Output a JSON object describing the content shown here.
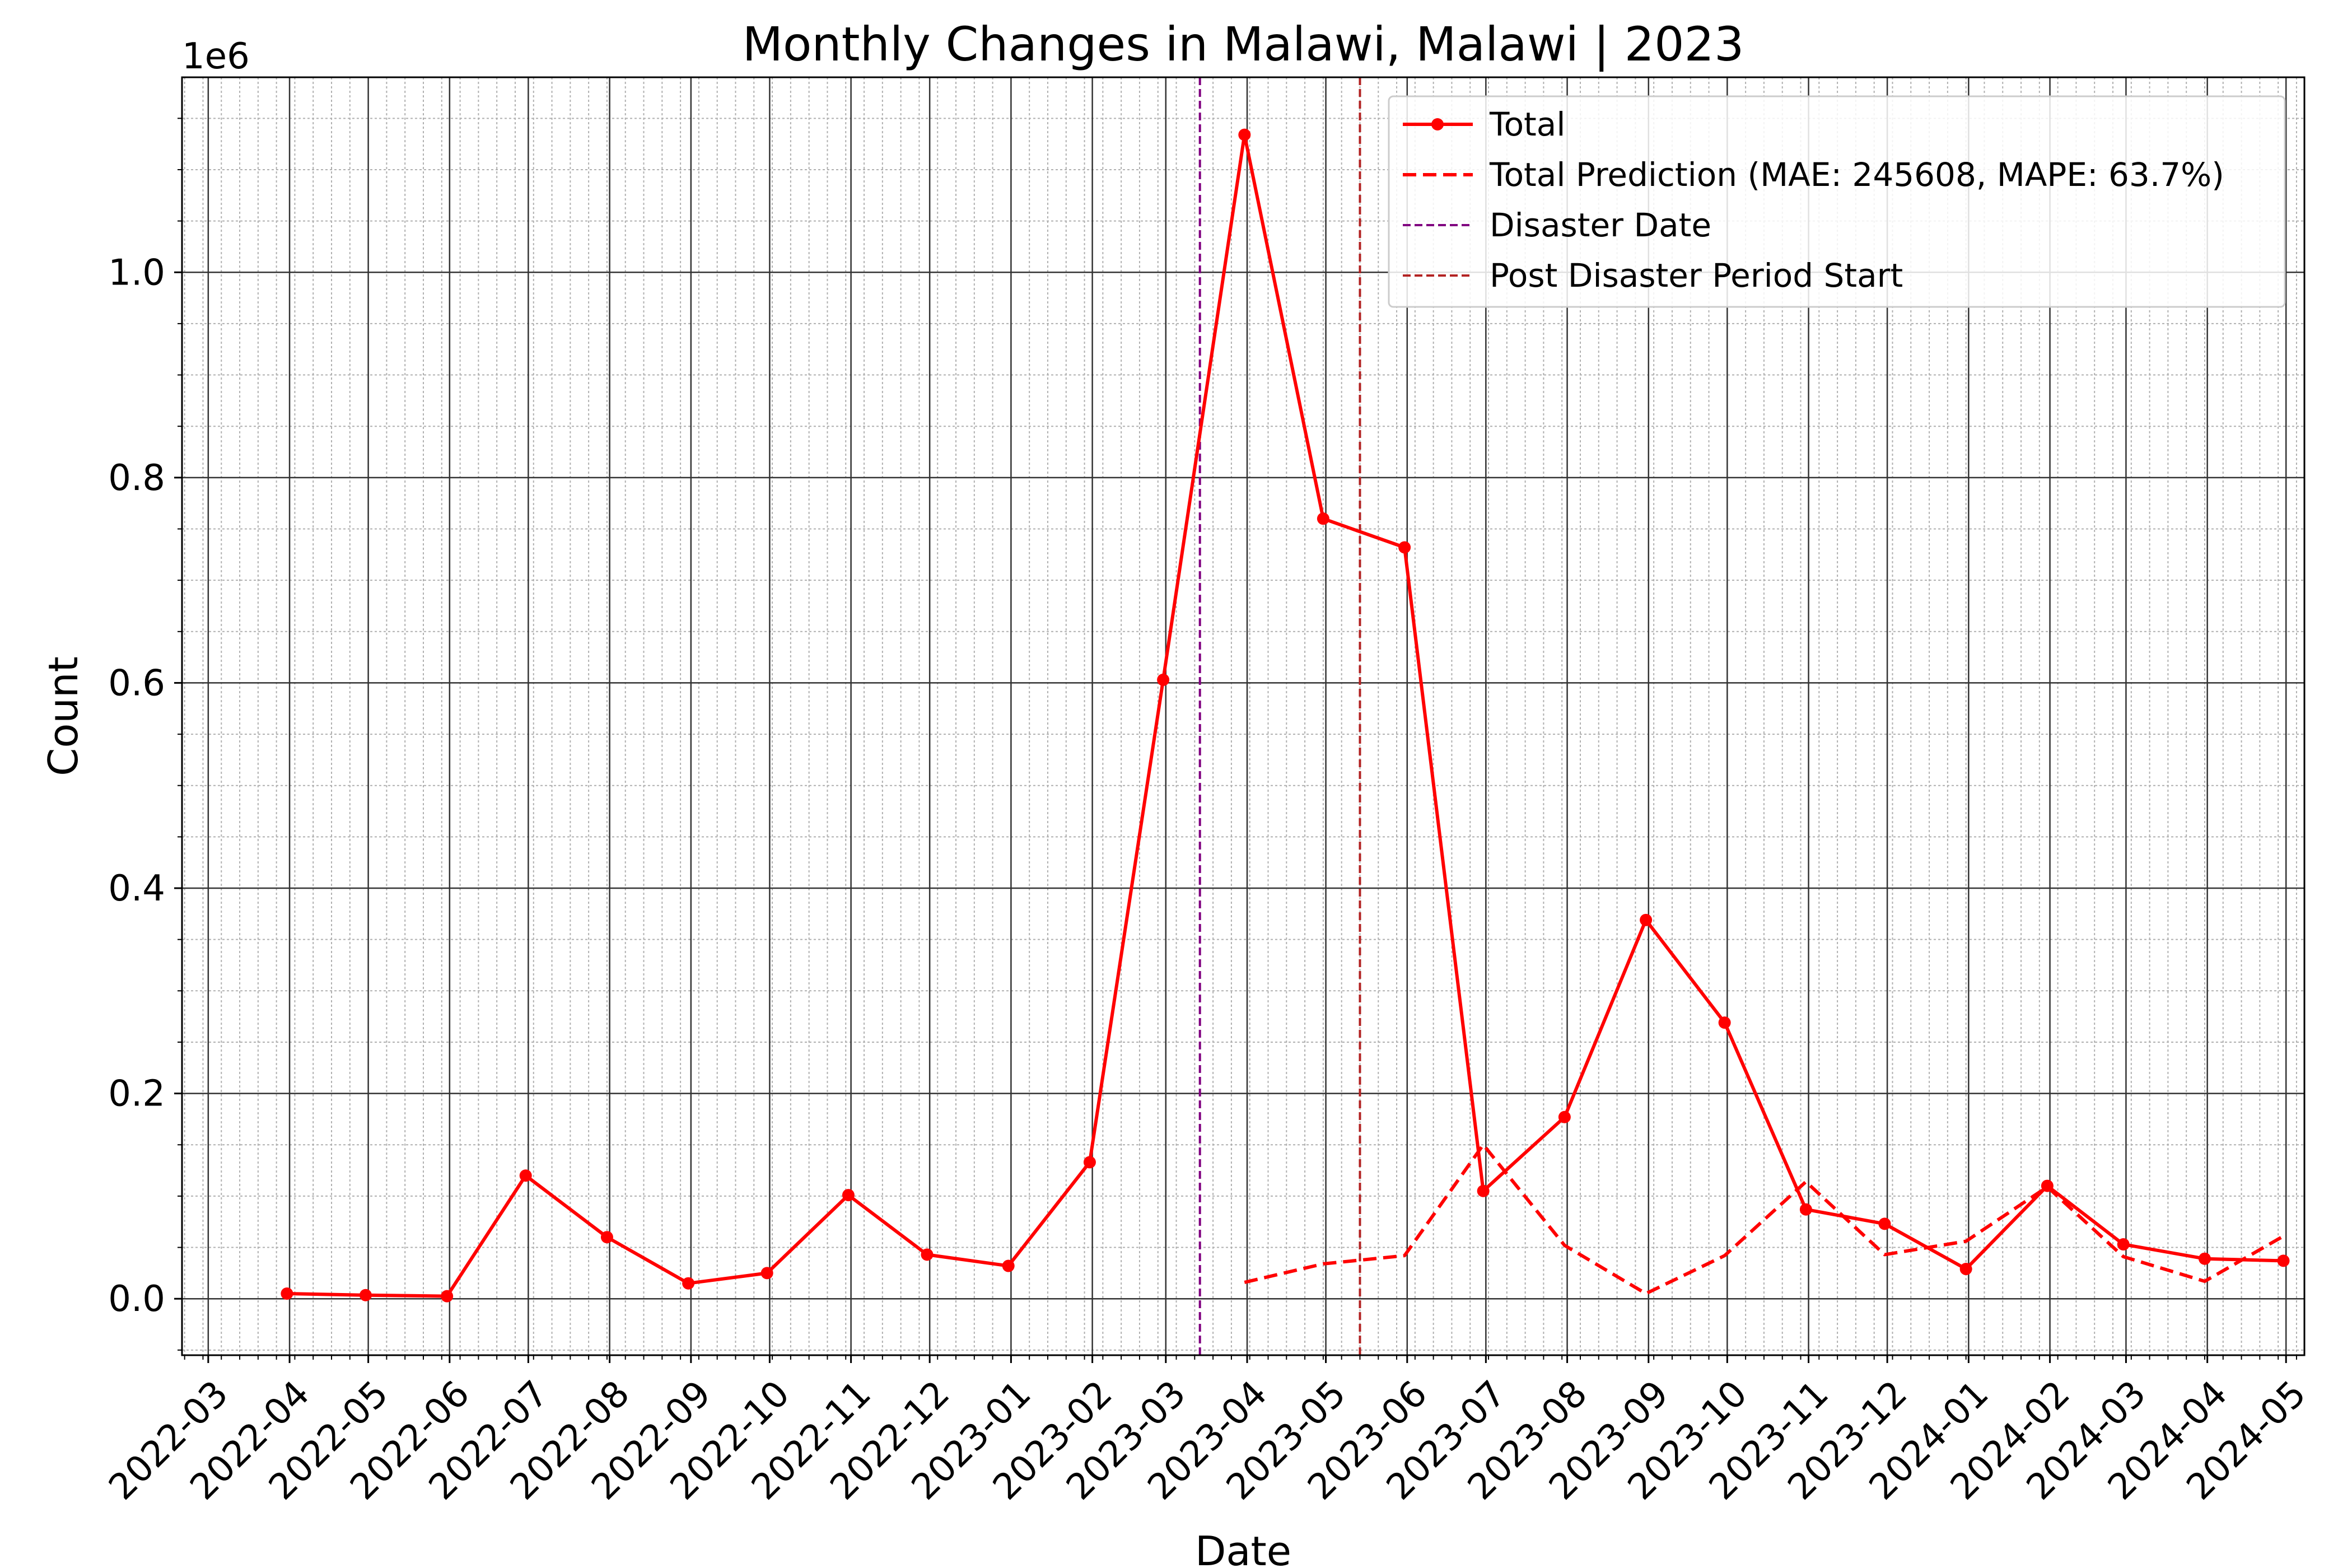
{
  "chart_data": {
    "type": "line",
    "title": "Monthly Changes in Malawi, Malawi | 2023",
    "xlabel": "Date",
    "ylabel": "Count",
    "y_offset_label": "1e6",
    "ylim": [
      -55000,
      1190000
    ],
    "xlim": [
      "2022-02-19",
      "2024-05-08"
    ],
    "y_ticks": [
      0.0,
      0.2,
      0.4,
      0.6,
      0.8,
      1.0
    ],
    "y_tick_labels": [
      "0.0",
      "0.2",
      "0.4",
      "0.6",
      "0.8",
      "1.0"
    ],
    "x_ticks": [
      "2022-03-01",
      "2022-04-01",
      "2022-05-01",
      "2022-06-01",
      "2022-07-01",
      "2022-08-01",
      "2022-09-01",
      "2022-10-01",
      "2022-11-01",
      "2022-12-01",
      "2023-01-01",
      "2023-02-01",
      "2023-03-01",
      "2023-04-01",
      "2023-05-01",
      "2023-06-01",
      "2023-07-01",
      "2023-08-01",
      "2023-09-01",
      "2023-10-01",
      "2023-11-01",
      "2023-12-01",
      "2024-01-01",
      "2024-02-01",
      "2024-03-01",
      "2024-04-01",
      "2024-05-01"
    ],
    "x_tick_labels": [
      "2022-03",
      "2022-04",
      "2022-05",
      "2022-06",
      "2022-07",
      "2022-08",
      "2022-09",
      "2022-10",
      "2022-11",
      "2022-12",
      "2023-01",
      "2023-02",
      "2023-03",
      "2023-04",
      "2023-05",
      "2023-06",
      "2023-07",
      "2023-08",
      "2023-09",
      "2023-10",
      "2023-11",
      "2023-12",
      "2024-01",
      "2024-02",
      "2024-03",
      "2024-04",
      "2024-05"
    ],
    "grid": true,
    "legend_position": "top-right",
    "series": [
      {
        "name": "Total",
        "color": "#ff0000",
        "style": "solid",
        "markers": true,
        "x": [
          "2022-03-31",
          "2022-04-30",
          "2022-05-31",
          "2022-06-30",
          "2022-07-31",
          "2022-08-31",
          "2022-09-30",
          "2022-10-31",
          "2022-11-30",
          "2022-12-31",
          "2023-01-31",
          "2023-02-28",
          "2023-03-31",
          "2023-04-30",
          "2023-05-31",
          "2023-06-30",
          "2023-07-31",
          "2023-08-31",
          "2023-09-30",
          "2023-10-31",
          "2023-11-30",
          "2023-12-31",
          "2024-01-31",
          "2024-02-29",
          "2024-03-31",
          "2024-04-30"
        ],
        "y": [
          5000,
          3500,
          2500,
          120000,
          60000,
          15000,
          25000,
          101000,
          43000,
          32000,
          133000,
          603000,
          1134000,
          760000,
          732000,
          105000,
          177000,
          369000,
          269000,
          87000,
          73000,
          29000,
          110000,
          53000,
          39000,
          37000
        ]
      },
      {
        "name": "Total Prediction (MAE: 245608, MAPE: 63.7%)",
        "color": "#ff0000",
        "style": "dashed",
        "markers": false,
        "x": [
          "2023-03-31",
          "2023-04-30",
          "2023-05-31",
          "2023-06-30",
          "2023-07-31",
          "2023-08-31",
          "2023-09-30",
          "2023-10-31",
          "2023-11-30",
          "2023-12-31",
          "2024-01-31",
          "2024-02-29",
          "2024-03-31",
          "2024-04-30"
        ],
        "y": [
          16000,
          34000,
          42000,
          150000,
          52000,
          5000,
          42000,
          114000,
          43000,
          56000,
          109000,
          41000,
          17000,
          61000
        ]
      }
    ],
    "vlines": [
      {
        "name": "Disaster Date",
        "x": "2023-03-14",
        "color": "#800080"
      },
      {
        "name": "Post Disaster Period Start",
        "x": "2023-05-14",
        "color": "#b22222"
      }
    ]
  }
}
